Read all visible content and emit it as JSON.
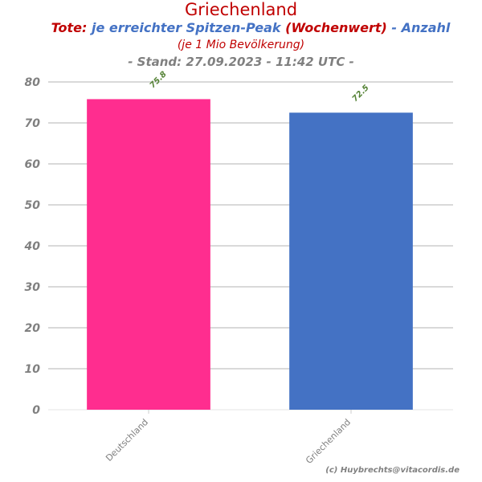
{
  "chart_data": {
    "type": "bar",
    "title": "Griechenland",
    "subtitle": {
      "part1": "Tote:",
      "part2": "je erreichter Spitzen-Peak",
      "part3": "(Wochenwert)",
      "part4": "- Anzahl"
    },
    "subtitle2": "(je 1 Mio Bevölkerung)",
    "stand": "- Stand: 27.09.2023 - 11:42 UTC -",
    "categories": [
      "Deutschland",
      "Griechenland"
    ],
    "values": [
      75.8,
      72.5
    ],
    "value_labels": [
      "75.8",
      "72.5"
    ],
    "bar_colors": [
      "#ff2d8f",
      "#4472c4"
    ],
    "label_color": "#548235",
    "ylim": [
      0,
      80
    ],
    "yticks": [
      0,
      10,
      20,
      30,
      40,
      50,
      60,
      70,
      80
    ],
    "grid": true,
    "xlabel": "",
    "ylabel": ""
  },
  "credit": "(c) Huybrechts@vitacordis.de"
}
